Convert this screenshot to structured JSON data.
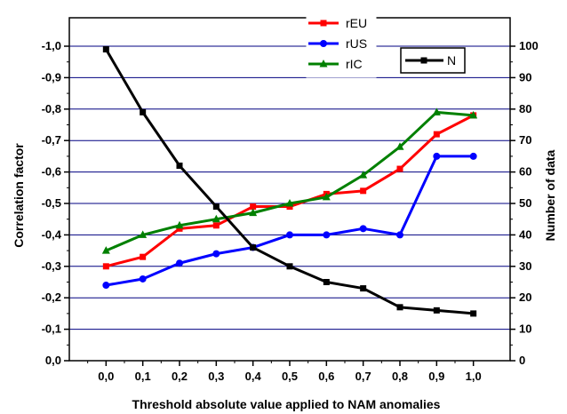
{
  "chart_data": {
    "type": "line",
    "title": "",
    "xlabel": "Threshold absolute value applied to NAM anomalies",
    "ylabel_left": "Correlation factor",
    "ylabel_right": "Number of data",
    "x": [
      0.0,
      0.1,
      0.2,
      0.3,
      0.4,
      0.5,
      0.6,
      0.7,
      0.8,
      0.9,
      1.0
    ],
    "x_tick_labels": [
      "0,0",
      "0,1",
      "0,2",
      "0,3",
      "0,4",
      "0,5",
      "0,6",
      "0,7",
      "0,8",
      "0,9",
      "1,0"
    ],
    "y_left_range": [
      0.0,
      -1.0
    ],
    "y_left_tick_values": [
      0.0,
      -0.1,
      -0.2,
      -0.3,
      -0.4,
      -0.5,
      -0.6,
      -0.7,
      -0.8,
      -0.9,
      -1.0
    ],
    "y_left_tick_labels": [
      "0,0",
      "-0,1",
      "-0,2",
      "-0,3",
      "-0,4",
      "-0,5",
      "-0,6",
      "-0,7",
      "-0,8",
      "-0,9",
      "-1,0"
    ],
    "y_right_range": [
      0,
      100
    ],
    "y_right_tick_values": [
      0,
      10,
      20,
      30,
      40,
      50,
      60,
      70,
      80,
      90,
      100
    ],
    "y_right_tick_labels": [
      "0",
      "10",
      "20",
      "30",
      "40",
      "50",
      "60",
      "70",
      "80",
      "90",
      "100"
    ],
    "grid": "horizontal",
    "legend_position": "top",
    "series": [
      {
        "name": "rEU",
        "axis": "left",
        "color": "#ff0000",
        "marker": "square",
        "values": [
          -0.3,
          -0.33,
          -0.42,
          -0.43,
          -0.49,
          -0.49,
          -0.53,
          -0.54,
          -0.61,
          -0.72,
          -0.78
        ]
      },
      {
        "name": "rUS",
        "axis": "left",
        "color": "#0000ff",
        "marker": "circle",
        "values": [
          -0.24,
          -0.26,
          -0.31,
          -0.34,
          -0.36,
          -0.4,
          -0.4,
          -0.42,
          -0.4,
          -0.65,
          -0.65
        ]
      },
      {
        "name": "rIC",
        "axis": "left",
        "color": "#008000",
        "marker": "triangle",
        "values": [
          -0.35,
          -0.4,
          -0.43,
          -0.45,
          -0.47,
          -0.5,
          -0.52,
          -0.59,
          -0.68,
          -0.79,
          -0.78
        ]
      },
      {
        "name": "N",
        "axis": "right",
        "color": "#000000",
        "marker": "square",
        "values": [
          99,
          79,
          62,
          49,
          36,
          30,
          25,
          23,
          17,
          16,
          15
        ]
      }
    ],
    "grid_color": "#000080"
  }
}
